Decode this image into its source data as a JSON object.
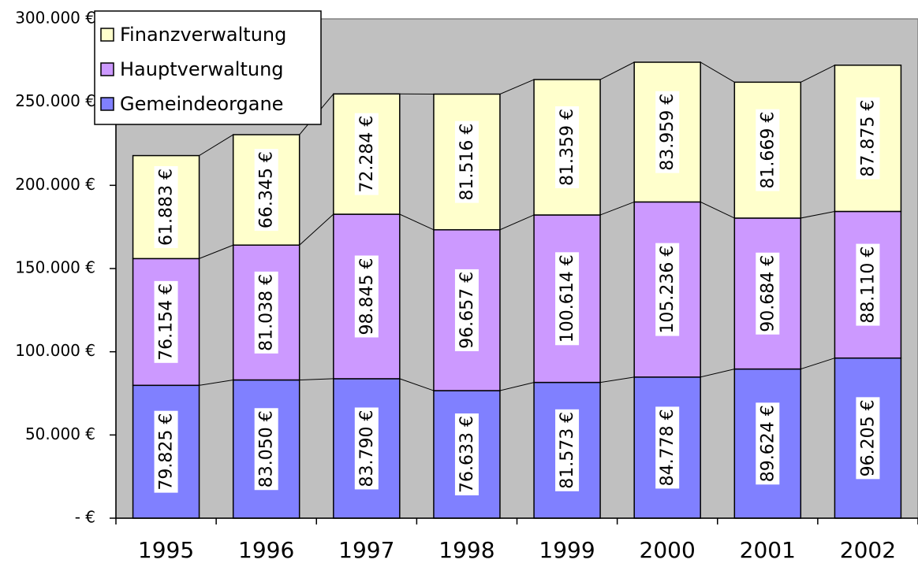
{
  "chart_data": {
    "type": "stacked_bar",
    "categories": [
      "1995",
      "1996",
      "1997",
      "1998",
      "1999",
      "2000",
      "2001",
      "2002"
    ],
    "series": [
      {
        "name": "Gemeindeorgane",
        "color": "#8080ff",
        "values": [
          79825,
          83050,
          83790,
          76633,
          81573,
          84778,
          89624,
          96205
        ],
        "value_labels": [
          "79.825 €",
          "83.050 €",
          "83.790 €",
          "76.633 €",
          "81.573 €",
          "84.778 €",
          "89.624 €",
          "96.205 €"
        ]
      },
      {
        "name": "Hauptverwaltung",
        "color": "#cc99ff",
        "values": [
          76154,
          81038,
          98845,
          96657,
          100614,
          105236,
          90684,
          88110
        ],
        "value_labels": [
          "76.154 €",
          "81.038 €",
          "98.845 €",
          "96.657 €",
          "100.614 €",
          "105.236 €",
          "90.684 €",
          "88.110 €"
        ]
      },
      {
        "name": "Finanzverwaltung",
        "color": "#ffffcc",
        "values": [
          61883,
          66345,
          72284,
          81516,
          81359,
          83959,
          81669,
          87875
        ],
        "value_labels": [
          "61.883 €",
          "66.345 €",
          "72.284 €",
          "81.516 €",
          "81.359 €",
          "83.959 €",
          "81.669 €",
          "87.875 €"
        ]
      }
    ],
    "ylim": [
      0,
      300000
    ],
    "yticks": [
      {
        "value": 0,
        "label": "- €"
      },
      {
        "value": 50000,
        "label": "50.000 €"
      },
      {
        "value": 100000,
        "label": "100.000 €"
      },
      {
        "value": 150000,
        "label": "150.000 €"
      },
      {
        "value": 200000,
        "label": "200.000 €"
      },
      {
        "value": 250000,
        "label": "250.000 €"
      },
      {
        "value": 300000,
        "label": "300.000 €"
      }
    ],
    "legend": "top-left"
  }
}
